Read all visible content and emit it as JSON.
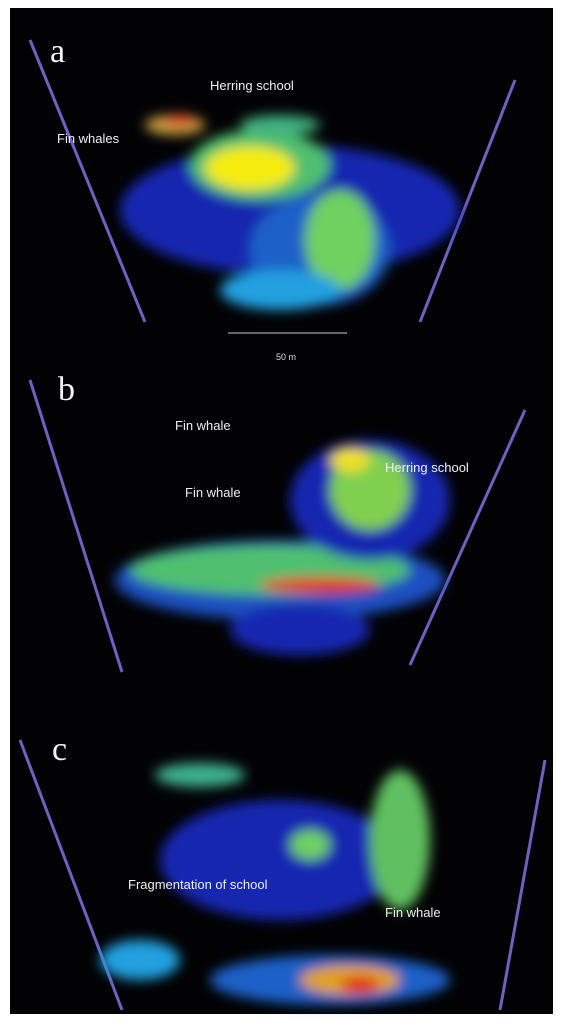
{
  "panels": [
    {
      "label": "a",
      "annotations": [
        "Herring school",
        "Fin whales"
      ],
      "scale_bar": "50 m"
    },
    {
      "label": "b",
      "annotations": [
        "Fin whale",
        "Fin whale",
        "Herring school"
      ]
    },
    {
      "label": "c",
      "annotations": [
        "Fragmentation of school",
        "Fin whale"
      ]
    }
  ]
}
